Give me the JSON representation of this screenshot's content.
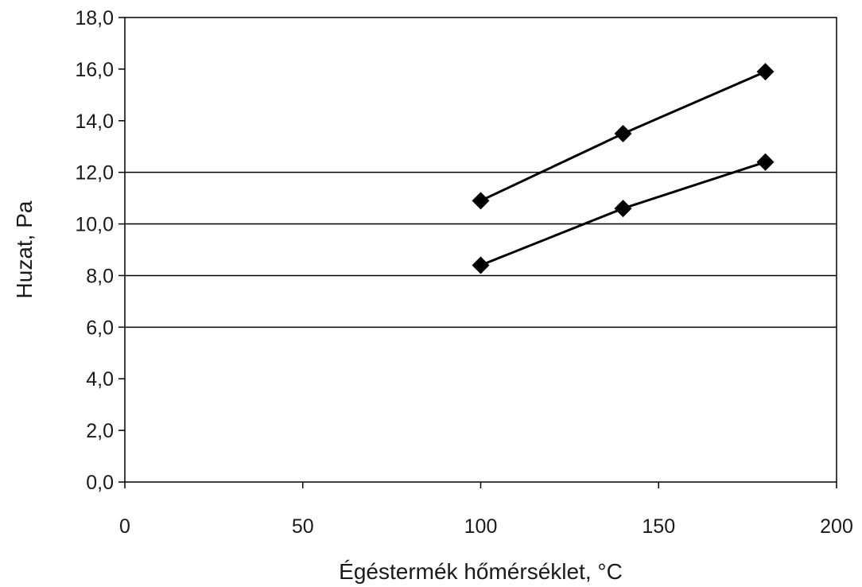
{
  "chart_data": {
    "type": "line",
    "xlabel": "Égéstermék hőmérséklet, °C",
    "ylabel": "Huzat, Pa",
    "xlim": [
      0,
      200
    ],
    "ylim": [
      0,
      18
    ],
    "x_ticks": [
      0,
      50,
      100,
      150,
      200
    ],
    "y_ticks": [
      0,
      2,
      4,
      6,
      8,
      10,
      12,
      14,
      16,
      18
    ],
    "x_tick_labels": [
      "0",
      "50",
      "100",
      "150",
      "200"
    ],
    "y_tick_labels": [
      "0,0",
      "2,0",
      "4,0",
      "6,0",
      "8,0",
      "10,0",
      "12,0",
      "14,0",
      "16,0",
      "18,0"
    ],
    "gridlines_y": [
      6,
      8,
      10,
      12
    ],
    "marker": "diamond",
    "series": [
      {
        "x": [
          100,
          140,
          180
        ],
        "values": [
          10.9,
          13.5,
          15.9
        ]
      },
      {
        "x": [
          100,
          140,
          180
        ],
        "values": [
          8.4,
          10.6,
          12.4
        ]
      }
    ],
    "colors": {
      "line": "#000000",
      "grid": "#000000",
      "text": "#1a1a1a"
    }
  }
}
